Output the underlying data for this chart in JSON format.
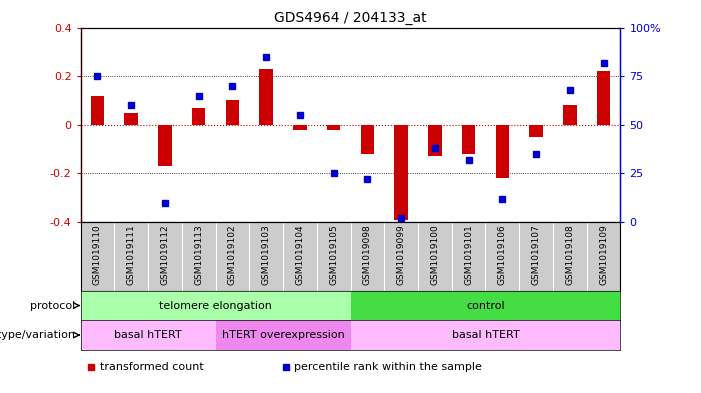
{
  "title": "GDS4964 / 204133_at",
  "samples": [
    "GSM1019110",
    "GSM1019111",
    "GSM1019112",
    "GSM1019113",
    "GSM1019102",
    "GSM1019103",
    "GSM1019104",
    "GSM1019105",
    "GSM1019098",
    "GSM1019099",
    "GSM1019100",
    "GSM1019101",
    "GSM1019106",
    "GSM1019107",
    "GSM1019108",
    "GSM1019109"
  ],
  "bar_values": [
    0.12,
    0.05,
    -0.17,
    0.07,
    0.1,
    0.23,
    -0.02,
    -0.02,
    -0.12,
    -0.39,
    -0.13,
    -0.12,
    -0.22,
    -0.05,
    0.08,
    0.22
  ],
  "dot_values": [
    75,
    60,
    10,
    65,
    70,
    85,
    55,
    25,
    22,
    2,
    38,
    32,
    12,
    35,
    68,
    82
  ],
  "bar_color": "#cc0000",
  "dot_color": "#0000cc",
  "ylim_left": [
    -0.4,
    0.4
  ],
  "ylim_right": [
    0,
    100
  ],
  "yticks_left": [
    -0.4,
    -0.2,
    0.0,
    0.2,
    0.4
  ],
  "ytick_labels_left": [
    "-0.4",
    "-0.2",
    "0",
    "0.2",
    "0.4"
  ],
  "yticks_right": [
    0,
    25,
    50,
    75,
    100
  ],
  "ytick_labels_right": [
    "0",
    "25",
    "50",
    "75",
    "100%"
  ],
  "hgrid_values": [
    -0.2,
    0.0,
    0.2
  ],
  "protocol_groups": [
    {
      "label": "telomere elongation",
      "start": 0,
      "end": 8,
      "color": "#aaffaa"
    },
    {
      "label": "control",
      "start": 8,
      "end": 16,
      "color": "#44dd44"
    }
  ],
  "genotype_groups": [
    {
      "label": "basal hTERT",
      "start": 0,
      "end": 4,
      "color": "#ffbbff"
    },
    {
      "label": "hTERT overexpression",
      "start": 4,
      "end": 8,
      "color": "#ee88ee"
    },
    {
      "label": "basal hTERT",
      "start": 8,
      "end": 16,
      "color": "#ffbbff"
    }
  ],
  "legend_items": [
    {
      "label": "transformed count",
      "color": "#cc0000"
    },
    {
      "label": "percentile rank within the sample",
      "color": "#0000cc"
    }
  ],
  "protocol_label": "protocol",
  "genotype_label": "genotype/variation",
  "sample_bg_color": "#cccccc",
  "bar_width": 0.4
}
